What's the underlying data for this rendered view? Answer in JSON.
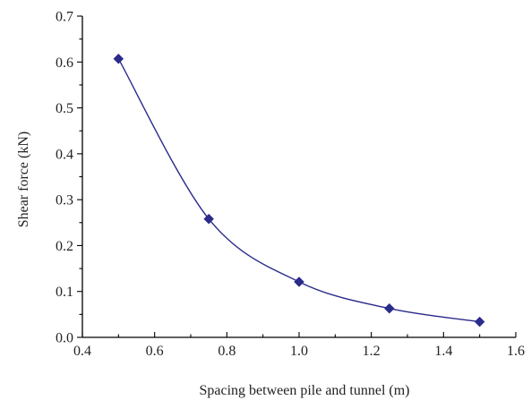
{
  "chart_data": {
    "type": "line",
    "title": "",
    "xlabel": "Spacing between pile and tunnel (m)",
    "ylabel": "Shear force (kN)",
    "xlim": [
      0.4,
      1.6
    ],
    "ylim": [
      0.0,
      0.7
    ],
    "x_ticks": [
      "0.4",
      "0.6",
      "0.8",
      "1.0",
      "1.2",
      "1.4",
      "1.6"
    ],
    "y_ticks": [
      "0.0",
      "0.1",
      "0.2",
      "0.3",
      "0.4",
      "0.5",
      "0.6",
      "0.7"
    ],
    "grid": false,
    "smooth": true,
    "marker": "diamond",
    "series": [
      {
        "color": "#2b2b8c",
        "x": [
          0.5,
          0.75,
          1.0,
          1.25,
          1.5
        ],
        "y": [
          0.607,
          0.258,
          0.121,
          0.063,
          0.034
        ]
      }
    ]
  }
}
